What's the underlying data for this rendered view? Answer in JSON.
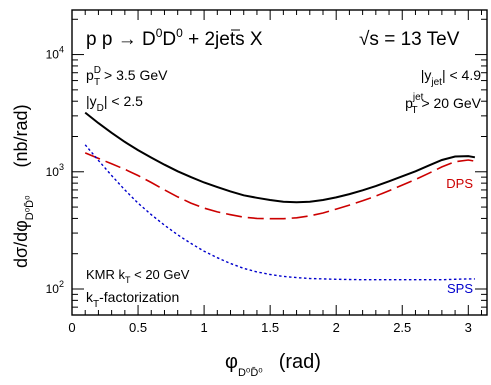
{
  "chart_data": {
    "type": "line",
    "title": {
      "process_main": "p p → D",
      "process_sup1": "0",
      "process_mid": "D",
      "process_sup2": "0",
      "process_tail": " + 2jets X",
      "energy_prefix": "√s = 13 TeV"
    },
    "xlabel": {
      "symbol": "φ",
      "subscript": "D⁰D̄⁰",
      "unit": "(rad)"
    },
    "ylabel": {
      "main": "dσ/dφ",
      "subscript": "D⁰D̄⁰",
      "unit": "(nb/rad)"
    },
    "xlim": [
      0,
      3.14159
    ],
    "ylim": [
      60,
      24000
    ],
    "yscale": "log",
    "x_ticks": [
      0,
      0.5,
      1,
      1.5,
      2,
      2.5,
      3
    ],
    "x_tick_labels": [
      "0",
      "0.5",
      "1",
      "1.5",
      "2",
      "2.5",
      "3"
    ],
    "y_ticks": [
      100,
      1000,
      10000
    ],
    "y_tick_labels": [
      {
        "base": "10",
        "exp": "2"
      },
      {
        "base": "10",
        "exp": "3"
      },
      {
        "base": "10",
        "exp": "4"
      }
    ],
    "annotations": {
      "cut_ptD": {
        "main": "p",
        "sub": "T",
        "sup": "D",
        "rest": " > 3.5 GeV"
      },
      "cut_yD": {
        "main": "|y",
        "sub": "D",
        "rest": "| < 2.5"
      },
      "cut_yjet": {
        "main": "|y",
        "sub": "jet",
        "rest": "| < 4.9"
      },
      "cut_ptjet": {
        "main": "p",
        "sub": "T",
        "sup": "jet",
        "rest": " > 20 GeV"
      },
      "model_kmr": {
        "main": "KMR k",
        "sub": "T",
        "rest": " < 20 GeV"
      },
      "model_kt": {
        "main": "k",
        "sub": "T",
        "rest": "-factorization"
      }
    },
    "series": [
      {
        "name": "",
        "color": "#000000",
        "dash": "solid",
        "x": [
          0.1,
          0.2,
          0.3,
          0.4,
          0.5,
          0.6,
          0.7,
          0.8,
          0.9,
          1.0,
          1.1,
          1.2,
          1.3,
          1.4,
          1.5,
          1.6,
          1.7,
          1.8,
          1.9,
          2.0,
          2.1,
          2.2,
          2.3,
          2.4,
          2.5,
          2.6,
          2.7,
          2.8,
          2.9,
          3.0,
          3.05
        ],
        "y": [
          3200,
          2600,
          2150,
          1800,
          1530,
          1320,
          1150,
          1010,
          900,
          810,
          740,
          680,
          630,
          600,
          575,
          555,
          550,
          555,
          575,
          605,
          645,
          695,
          755,
          830,
          915,
          1010,
          1130,
          1260,
          1350,
          1360,
          1330
        ]
      },
      {
        "name": "DPS",
        "color": "#cc0000",
        "dash": "long-dash",
        "x": [
          0.1,
          0.2,
          0.3,
          0.4,
          0.5,
          0.6,
          0.7,
          0.8,
          0.9,
          1.0,
          1.1,
          1.2,
          1.3,
          1.4,
          1.5,
          1.6,
          1.7,
          1.8,
          1.9,
          2.0,
          2.1,
          2.2,
          2.3,
          2.4,
          2.5,
          2.6,
          2.7,
          2.8,
          2.9,
          3.0,
          3.05
        ],
        "y": [
          1450,
          1300,
          1170,
          1050,
          930,
          810,
          700,
          610,
          540,
          490,
          455,
          430,
          410,
          400,
          398,
          398,
          405,
          420,
          445,
          480,
          520,
          565,
          620,
          690,
          770,
          860,
          970,
          1100,
          1220,
          1260,
          1230
        ]
      },
      {
        "name": "SPS",
        "color": "#0000cc",
        "dash": "dotted",
        "x": [
          0.1,
          0.2,
          0.3,
          0.4,
          0.5,
          0.6,
          0.7,
          0.8,
          0.9,
          1.0,
          1.1,
          1.2,
          1.3,
          1.4,
          1.5,
          1.6,
          1.7,
          1.8,
          1.9,
          2.0,
          2.2,
          2.4,
          2.6,
          2.8,
          3.0,
          3.05
        ],
        "y": [
          1700,
          1250,
          930,
          700,
          540,
          430,
          350,
          290,
          245,
          210,
          185,
          165,
          150,
          140,
          133,
          128,
          125,
          123,
          122,
          121,
          120,
          120,
          120,
          120,
          122,
          122
        ]
      }
    ],
    "legend": {
      "placement": "inline-right",
      "entries": [
        "DPS",
        "SPS"
      ]
    },
    "grid": false
  }
}
